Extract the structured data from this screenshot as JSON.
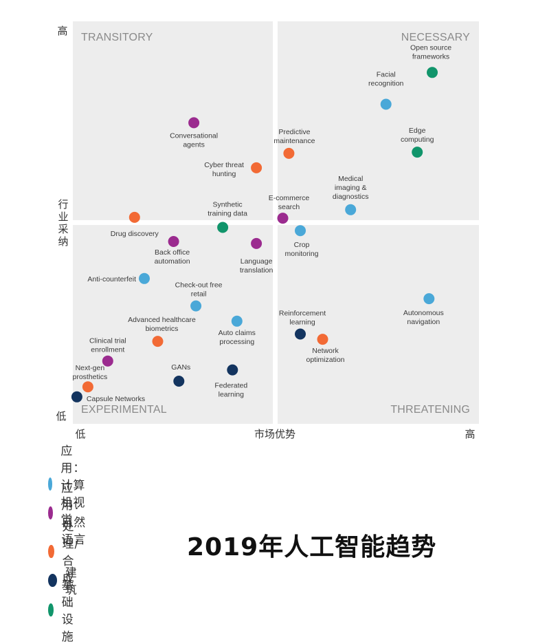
{
  "chart_data": {
    "type": "scatter",
    "title": "2019年人工智能趋势",
    "xlabel": "市场优势",
    "ylabel": "行业采纳",
    "x_low_label": "低",
    "x_high_label": "高",
    "y_low_label": "低",
    "y_high_label": "高",
    "xlim": [
      0,
      100
    ],
    "ylim": [
      0,
      100
    ],
    "grid": false,
    "quadrants": {
      "top_left": "TRANSITORY",
      "top_right": "NECESSARY",
      "bottom_left": "EXPERIMENTAL",
      "bottom_right": "THREATENING"
    },
    "legend_position": "bottom-left",
    "series": [
      {
        "name": "应用：计算机视觉",
        "color": "#4aa8d8",
        "points": [
          {
            "label": "Facial recognition",
            "x": 77.1,
            "y": 79.4
          },
          {
            "label": "Medical imaging & diagnostics",
            "x": 68.4,
            "y": 53.2
          },
          {
            "label": "Crop monitoring",
            "x": 56.0,
            "y": 48.0
          },
          {
            "label": "Anti-counterfeit",
            "x": 17.6,
            "y": 36.1
          },
          {
            "label": "Check-out free retail",
            "x": 30.3,
            "y": 29.3
          },
          {
            "label": "Auto claims processing",
            "x": 40.4,
            "y": 25.5
          },
          {
            "label": "Autonomous navigation",
            "x": 87.7,
            "y": 31.1
          }
        ]
      },
      {
        "name": "应用：自然语言",
        "color": "#9b2b8f",
        "points": [
          {
            "label": "Conversational agents",
            "x": 29.8,
            "y": 74.8
          },
          {
            "label": "E-commerce search",
            "x": 51.7,
            "y": 51.1
          },
          {
            "label": "Back office automation",
            "x": 24.8,
            "y": 45.3
          },
          {
            "label": "Language translation",
            "x": 45.2,
            "y": 44.8
          },
          {
            "label": "Clinical trial enrollment",
            "x": 8.6,
            "y": 15.6
          }
        ]
      },
      {
        "name": "处理/合成",
        "color": "#f26a35",
        "points": [
          {
            "label": "Predictive maintenance",
            "x": 53.2,
            "y": 67.2
          },
          {
            "label": "Cyber threat hunting",
            "x": 45.2,
            "y": 63.6
          },
          {
            "label": "Drug discovery",
            "x": 15.2,
            "y": 51.3
          },
          {
            "label": "Advanced healthcare biometrics",
            "x": 20.9,
            "y": 20.5
          },
          {
            "label": "Network optimization",
            "x": 61.5,
            "y": 21.0
          },
          {
            "label": "Next-gen prosthetics",
            "x": 3.7,
            "y": 9.2
          }
        ]
      },
      {
        "name": "建筑",
        "color": "#13345f",
        "points": [
          {
            "label": "Reinforcement learning",
            "x": 56.0,
            "y": 22.3
          },
          {
            "label": "Federated learning",
            "x": 39.3,
            "y": 13.4
          },
          {
            "label": "GANs",
            "x": 26.1,
            "y": 10.6
          },
          {
            "label": "Capsule Networks",
            "x": 1.0,
            "y": 6.7
          }
        ]
      },
      {
        "name": "基础设施",
        "color": "#11956b",
        "points": [
          {
            "label": "Open source frameworks",
            "x": 88.5,
            "y": 87.3
          },
          {
            "label": "Edge computing",
            "x": 84.8,
            "y": 67.5
          },
          {
            "label": "Synthetic training data",
            "x": 36.9,
            "y": 48.8
          }
        ]
      }
    ]
  }
}
